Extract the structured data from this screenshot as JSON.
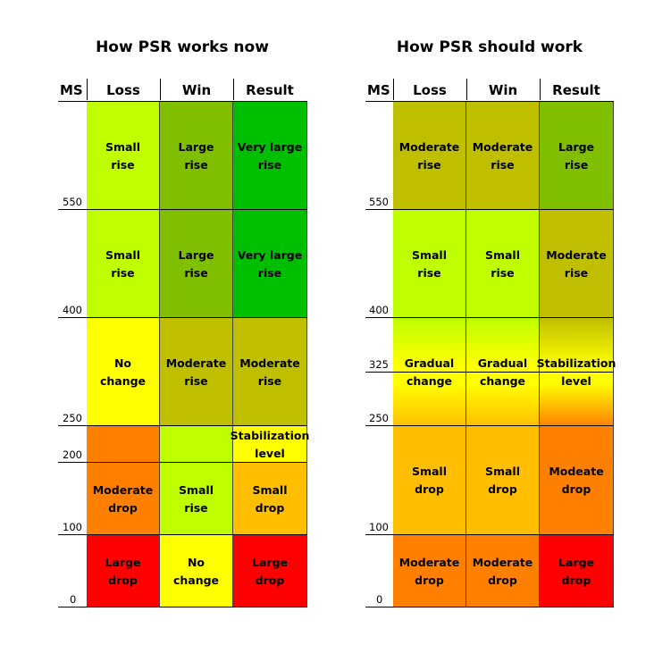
{
  "left": {
    "title": "How PSR works now",
    "headers": [
      "MS",
      "Loss",
      "Win",
      "Result"
    ],
    "ticks": [
      "550",
      "400",
      "250",
      "200",
      "100",
      "0"
    ],
    "rows": [
      [
        "Small\nrise",
        "Large\nrise",
        "Very large\nrise"
      ],
      [
        "Small\nrise",
        "Large\nrise",
        "Very large\nrise"
      ],
      [
        "No\nchange",
        "Moderate\nrise",
        "Moderate\nrise"
      ],
      [
        "Moderate\ndrop",
        "Small\nrise",
        "Stabilization\nlevel",
        "Small\ndrop"
      ],
      [
        "Large\ndrop",
        "No\nchange",
        "Large\ndrop"
      ]
    ]
  },
  "right": {
    "title": "How PSR should work",
    "headers": [
      "MS",
      "Loss",
      "Win",
      "Result"
    ],
    "ticks": [
      "550",
      "400",
      "325",
      "250",
      "100",
      "0"
    ],
    "rows": [
      [
        "Moderate\nrise",
        "Moderate\nrise",
        "Large\nrise"
      ],
      [
        "Small\nrise",
        "Small\nrise",
        "Moderate\nrise"
      ],
      [
        "Gradual\nchange",
        "Gradual\nchange",
        "Stabilization\nlevel"
      ],
      [
        "Small\ndrop",
        "Small\ndrop",
        "Modeate\ndrop"
      ],
      [
        "Moderate\ndrop",
        "Moderate\ndrop",
        "Large\ndrop"
      ]
    ]
  },
  "colors": {
    "lime": "#bfff00",
    "olive_green": "#80bf00",
    "green": "#00bf00",
    "yellow": "#ffff00",
    "olive": "#bfbf00",
    "orange": "#ff8000",
    "amber": "#ffbf00",
    "red": "#ff0000"
  }
}
